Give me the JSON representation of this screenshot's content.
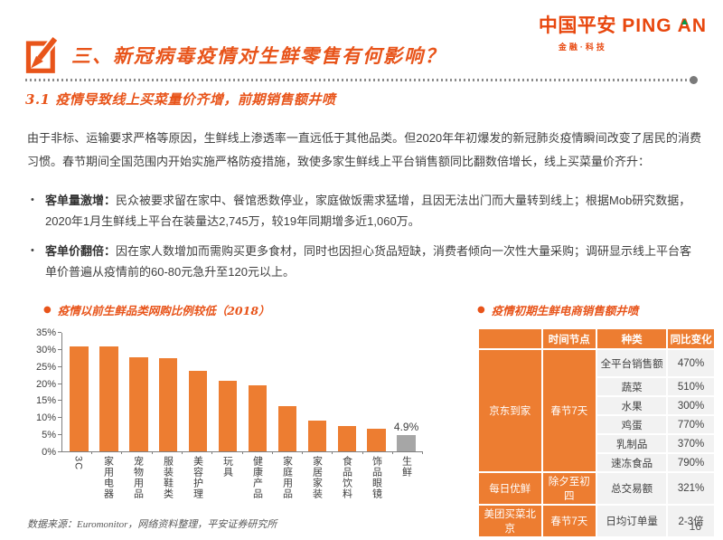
{
  "logo": {
    "brand_cn": "中国平安",
    "brand_en": "PING AN",
    "tagline": "金融·科技"
  },
  "header": {
    "title": "三、新冠病毒疫情对生鲜零售有何影响？"
  },
  "section": {
    "heading": "3.1 疫情导致线上买菜量价齐增，前期销售额井喷",
    "intro": "由于非标、运输要求严格等原因，生鲜线上渗透率一直远低于其他品类。但2020年年初爆发的新冠肺炎疫情瞬间改变了居民的消费习惯。春节期间全国范围内开始实施严格防疫措施，致使多家生鲜线上平台销售额同比翻数倍增长，线上买菜量价齐升：",
    "bullet_glyph": "•",
    "bullets": [
      {
        "lead": "客单量激增：",
        "text": "民众被要求留在家中、餐馆悉数停业，家庭做饭需求猛增，且因无法出门而大量转到线上；根据Mob研究数据，2020年1月生鲜线上平台在装量达2,745万，较19年同期增多近1,060万。"
      },
      {
        "lead": "客单价翻倍：",
        "text": "因在家人数增加而需购买更多食材，同时也因担心货品短缺，消费者倾向一次性大量采购；调研显示线上平台客单价普遍从疫情前的60-80元急升至120元以上。"
      }
    ]
  },
  "chart_data": {
    "type": "bar",
    "marker": "●",
    "title": "疫情以前生鲜品类网购比例较低（2018）",
    "categories": [
      "3C",
      "家用电器",
      "宠物用品",
      "服装鞋类",
      "美容护理",
      "玩具",
      "健康产品",
      "家庭用品",
      "家居家装",
      "食品饮料",
      "饰品眼镜",
      "生鲜"
    ],
    "values": [
      31,
      30.9,
      27.8,
      27.4,
      23.8,
      20.9,
      19.4,
      13.4,
      9.2,
      7.5,
      6.6,
      4.9
    ],
    "bar_color": "#ED7D31",
    "highlight": {
      "index": 11,
      "color": "#A6A6A6",
      "data_label": "4.9%"
    },
    "xlabel": "",
    "ylabel": "",
    "ylim": [
      0,
      35
    ],
    "ytick_step": 5,
    "ytick_suffix": "%",
    "grid": false,
    "legend": false
  },
  "table": {
    "marker": "●",
    "title": "疫情初期生鲜电商销售额井喷",
    "header": [
      "",
      "时间节点",
      "种类",
      "同比变化"
    ],
    "groups": [
      {
        "platform": "京东到家",
        "period": "春节7天",
        "rows": [
          [
            "全平台销售额",
            "470%"
          ],
          [
            "蔬菜",
            "510%"
          ],
          [
            "水果",
            "300%"
          ],
          [
            "鸡蛋",
            "770%"
          ],
          [
            "乳制品",
            "370%"
          ],
          [
            "速冻食品",
            "790%"
          ]
        ]
      },
      {
        "platform": "每日优鲜",
        "period": "除夕至初四",
        "rows": [
          [
            "总交易额",
            "321%"
          ]
        ]
      },
      {
        "platform": "美团买菜北京",
        "period": "春节7天",
        "rows": [
          [
            "日均订单量",
            "2-3倍"
          ]
        ]
      }
    ]
  },
  "footer": {
    "source": "数据来源：Euromonitor，网络资料整理，平安证券研究所",
    "page_number": "16"
  },
  "colors": {
    "accent_orange": "#ED7D31",
    "brand_orange": "#E8470E",
    "heading_orange": "#E8541A",
    "highlight_gray": "#A6A6A6",
    "logo_green": "#009B4C",
    "text_dark": "#404040",
    "text_gray": "#595959",
    "axis_gray": "#7F7F7F",
    "table_cell_gray": "#F2F2F2"
  }
}
